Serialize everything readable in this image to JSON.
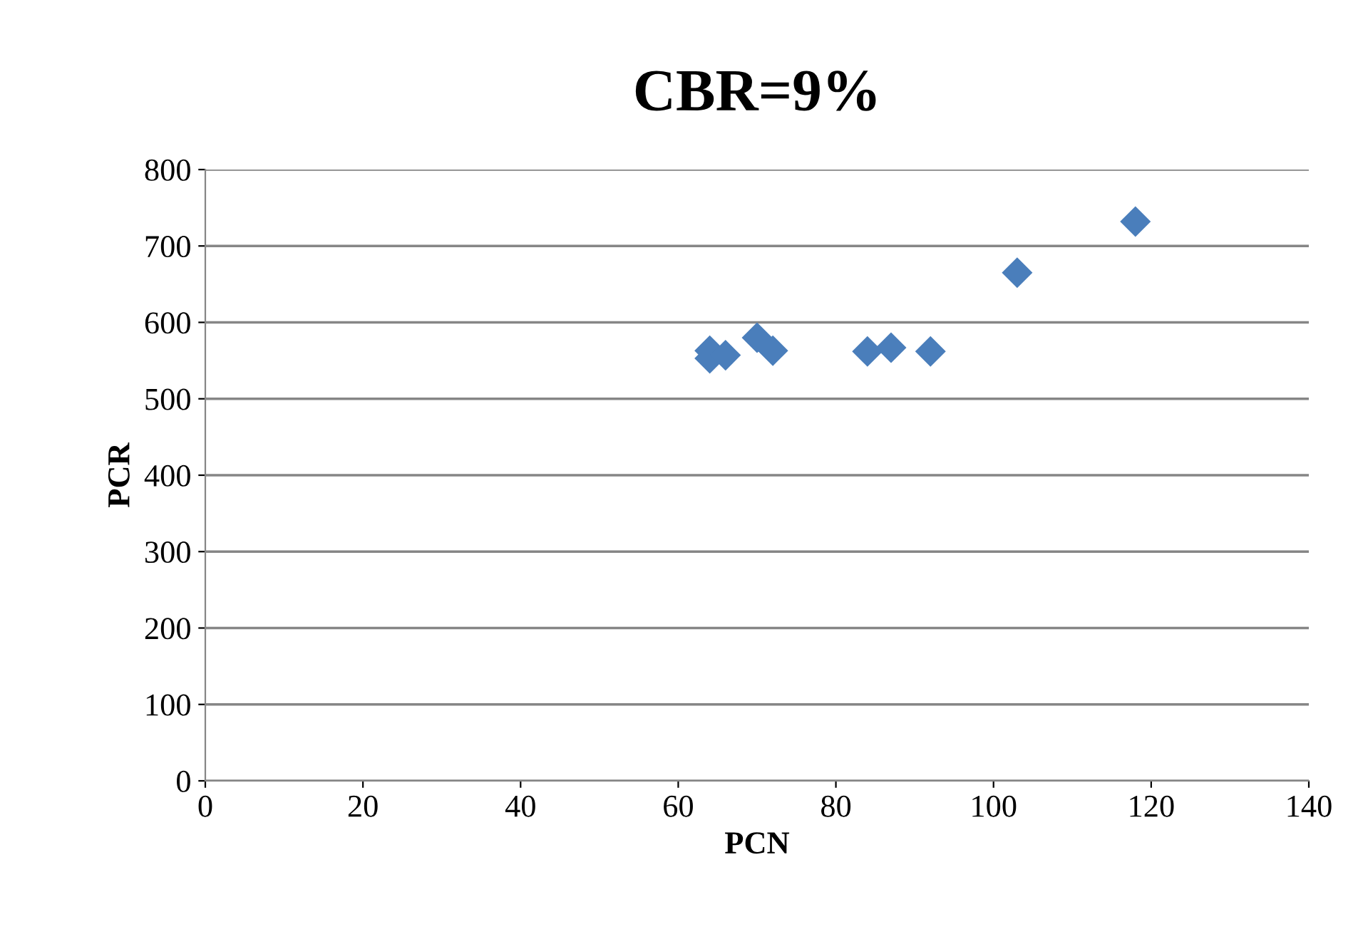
{
  "chart_data": {
    "type": "scatter",
    "title": "CBR=9%",
    "xlabel": "PCN",
    "ylabel": "PCR",
    "series": [
      {
        "color": "#4a7ebb",
        "x": [
          64,
          64,
          66,
          70,
          72,
          84,
          87,
          92,
          103,
          118
        ],
        "values": [
          563,
          553,
          557,
          580,
          563,
          562,
          567,
          562,
          665,
          732
        ]
      }
    ],
    "xlim": [
      0,
      140
    ],
    "xticks": [
      0,
      20,
      40,
      60,
      80,
      100,
      120,
      140
    ],
    "ylim": [
      0,
      800
    ],
    "yticks": [
      0,
      100,
      200,
      300,
      400,
      500,
      600,
      700,
      800
    ],
    "grid": "y",
    "marker": "diamond"
  }
}
